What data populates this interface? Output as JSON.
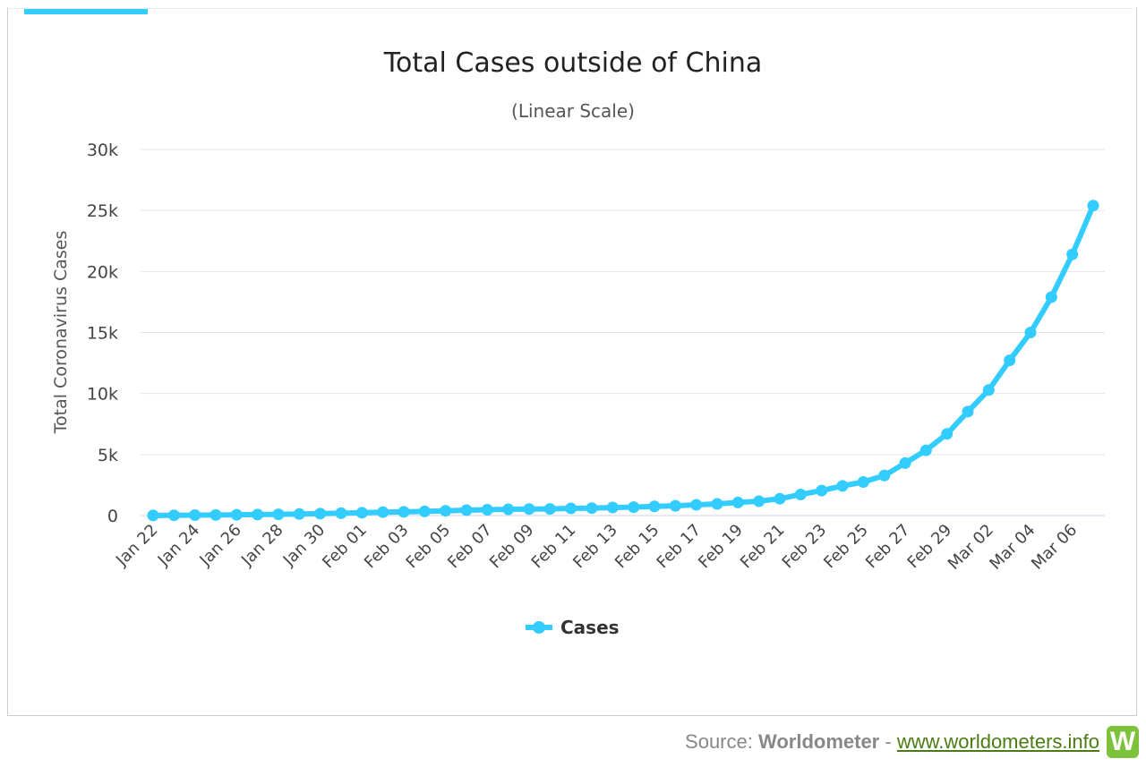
{
  "chart_data": {
    "type": "line",
    "title": "Total Cases outside of China",
    "subtitle": "(Linear Scale)",
    "ylabel": "Total Coronavirus Cases",
    "xlabel": "",
    "ylim": [
      0,
      30000
    ],
    "yticks": [
      {
        "value": 0,
        "label": "0"
      },
      {
        "value": 5000,
        "label": "5k"
      },
      {
        "value": 10000,
        "label": "10k"
      },
      {
        "value": 15000,
        "label": "15k"
      },
      {
        "value": 20000,
        "label": "20k"
      },
      {
        "value": 25000,
        "label": "25k"
      },
      {
        "value": 30000,
        "label": "30k"
      }
    ],
    "grid": true,
    "legend": "bottom-center",
    "x": [
      "Jan 22",
      "Jan 23",
      "Jan 24",
      "Jan 25",
      "Jan 26",
      "Jan 27",
      "Jan 28",
      "Jan 29",
      "Jan 30",
      "Jan 31",
      "Feb 01",
      "Feb 02",
      "Feb 03",
      "Feb 04",
      "Feb 05",
      "Feb 06",
      "Feb 07",
      "Feb 08",
      "Feb 09",
      "Feb 10",
      "Feb 11",
      "Feb 12",
      "Feb 13",
      "Feb 14",
      "Feb 15",
      "Feb 16",
      "Feb 17",
      "Feb 18",
      "Feb 19",
      "Feb 20",
      "Feb 21",
      "Feb 22",
      "Feb 23",
      "Feb 24",
      "Feb 25",
      "Feb 26",
      "Feb 27",
      "Feb 28",
      "Feb 29",
      "Mar 01",
      "Mar 02",
      "Mar 03",
      "Mar 04",
      "Mar 05",
      "Mar 06",
      "Mar 07"
    ],
    "x_tick_labels": [
      "Jan 22",
      "Jan 24",
      "Jan 26",
      "Jan 28",
      "Jan 30",
      "Feb 01",
      "Feb 03",
      "Feb 05",
      "Feb 07",
      "Feb 09",
      "Feb 11",
      "Feb 13",
      "Feb 15",
      "Feb 17",
      "Feb 19",
      "Feb 21",
      "Feb 23",
      "Feb 25",
      "Feb 27",
      "Feb 29",
      "Mar 02",
      "Mar 04",
      "Mar 06"
    ],
    "series": [
      {
        "name": "Cases",
        "color": "#33ccff",
        "values": [
          7,
          22,
          37,
          46,
          63,
          82,
          103,
          126,
          153,
          192,
          231,
          276,
          304,
          338,
          387,
          442,
          479,
          514,
          537,
          545,
          588,
          612,
          659,
          689,
          751,
          798,
          883,
          956,
          1073,
          1172,
          1379,
          1722,
          2049,
          2431,
          2754,
          3276,
          4297,
          5348,
          6691,
          8518,
          10281,
          12720,
          15000,
          17900,
          21400,
          25400
        ]
      }
    ]
  },
  "source": {
    "prefix": "Source: ",
    "brand": "Worldometer",
    "separator": " - ",
    "link": "www.worldometers.info",
    "logo_letter": "W"
  }
}
